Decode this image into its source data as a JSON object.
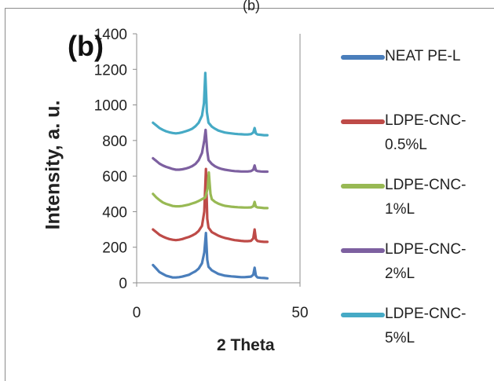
{
  "panel_label": "(b)",
  "top_label": "(b)",
  "chart_data": {
    "type": "line",
    "title": "",
    "xlabel": "2 Theta",
    "ylabel": "Intensity, a. u.",
    "xlim": [
      0,
      50
    ],
    "ylim": [
      0,
      1400
    ],
    "x_ticks": [
      "0",
      "50"
    ],
    "y_ticks": [
      "0",
      "200",
      "400",
      "600",
      "800",
      "1000",
      "1200",
      "1400"
    ],
    "grid": false,
    "legend_position": "right",
    "series": [
      {
        "name": "NEAT PE-L",
        "color": "#4a7ebb",
        "points": [
          [
            5,
            100
          ],
          [
            6,
            80
          ],
          [
            7,
            60
          ],
          [
            8,
            50
          ],
          [
            9,
            40
          ],
          [
            10,
            35
          ],
          [
            11,
            30
          ],
          [
            12,
            30
          ],
          [
            13,
            32
          ],
          [
            14,
            35
          ],
          [
            15,
            40
          ],
          [
            16,
            45
          ],
          [
            17,
            55
          ],
          [
            18,
            65
          ],
          [
            19,
            80
          ],
          [
            20,
            110
          ],
          [
            20.7,
            170
          ],
          [
            21.2,
            280
          ],
          [
            21.6,
            130
          ],
          [
            22,
            90
          ],
          [
            23,
            70
          ],
          [
            24,
            60
          ],
          [
            25,
            50
          ],
          [
            26,
            45
          ],
          [
            27,
            40
          ],
          [
            28,
            38
          ],
          [
            29,
            36
          ],
          [
            30,
            35
          ],
          [
            31,
            33
          ],
          [
            32,
            32
          ],
          [
            33,
            32
          ],
          [
            34,
            33
          ],
          [
            35,
            35
          ],
          [
            35.7,
            45
          ],
          [
            36.1,
            85
          ],
          [
            36.5,
            40
          ],
          [
            37,
            30
          ],
          [
            38,
            28
          ],
          [
            39,
            27
          ],
          [
            40,
            25
          ]
        ]
      },
      {
        "name": "LDPE-CNC-0.5%L",
        "color": "#be4b48",
        "points": [
          [
            5,
            300
          ],
          [
            6,
            285
          ],
          [
            7,
            270
          ],
          [
            8,
            260
          ],
          [
            9,
            252
          ],
          [
            10,
            246
          ],
          [
            11,
            242
          ],
          [
            12,
            240
          ],
          [
            13,
            242
          ],
          [
            14,
            246
          ],
          [
            15,
            252
          ],
          [
            16,
            258
          ],
          [
            17,
            266
          ],
          [
            18,
            276
          ],
          [
            19,
            292
          ],
          [
            20,
            320
          ],
          [
            20.7,
            400
          ],
          [
            21.2,
            640
          ],
          [
            21.6,
            360
          ],
          [
            22,
            310
          ],
          [
            23,
            285
          ],
          [
            24,
            275
          ],
          [
            25,
            265
          ],
          [
            26,
            258
          ],
          [
            27,
            252
          ],
          [
            28,
            248
          ],
          [
            29,
            244
          ],
          [
            30,
            240
          ],
          [
            31,
            238
          ],
          [
            32,
            236
          ],
          [
            33,
            234
          ],
          [
            34,
            234
          ],
          [
            35,
            236
          ],
          [
            35.7,
            250
          ],
          [
            36.1,
            300
          ],
          [
            36.5,
            245
          ],
          [
            37,
            235
          ],
          [
            38,
            232
          ],
          [
            39,
            230
          ],
          [
            40,
            230
          ]
        ]
      },
      {
        "name": "LDPE-CNC-1%L",
        "color": "#98b954",
        "points": [
          [
            5,
            500
          ],
          [
            6,
            480
          ],
          [
            7,
            465
          ],
          [
            8,
            452
          ],
          [
            9,
            444
          ],
          [
            10,
            438
          ],
          [
            11,
            432
          ],
          [
            12,
            430
          ],
          [
            13,
            430
          ],
          [
            14,
            432
          ],
          [
            15,
            436
          ],
          [
            16,
            440
          ],
          [
            17,
            446
          ],
          [
            18,
            452
          ],
          [
            19,
            460
          ],
          [
            20,
            470
          ],
          [
            21,
            480
          ],
          [
            21.7,
            530
          ],
          [
            22.1,
            620
          ],
          [
            22.6,
            500
          ],
          [
            23,
            470
          ],
          [
            24,
            455
          ],
          [
            25,
            445
          ],
          [
            26,
            438
          ],
          [
            27,
            433
          ],
          [
            28,
            430
          ],
          [
            29,
            428
          ],
          [
            30,
            426
          ],
          [
            31,
            425
          ],
          [
            32,
            424
          ],
          [
            33,
            423
          ],
          [
            34,
            423
          ],
          [
            35,
            424
          ],
          [
            35.7,
            430
          ],
          [
            36.1,
            455
          ],
          [
            36.5,
            428
          ],
          [
            37,
            424
          ],
          [
            38,
            422
          ],
          [
            39,
            420
          ],
          [
            40,
            420
          ]
        ]
      },
      {
        "name": "LDPE-CNC-2%L",
        "color": "#7d60a0",
        "points": [
          [
            5,
            700
          ],
          [
            6,
            685
          ],
          [
            7,
            670
          ],
          [
            8,
            660
          ],
          [
            9,
            652
          ],
          [
            10,
            646
          ],
          [
            11,
            640
          ],
          [
            12,
            636
          ],
          [
            13,
            636
          ],
          [
            14,
            638
          ],
          [
            15,
            642
          ],
          [
            16,
            648
          ],
          [
            17,
            656
          ],
          [
            18,
            668
          ],
          [
            19,
            690
          ],
          [
            20,
            730
          ],
          [
            20.7,
            800
          ],
          [
            21.1,
            860
          ],
          [
            21.6,
            740
          ],
          [
            22,
            690
          ],
          [
            23,
            668
          ],
          [
            24,
            655
          ],
          [
            25,
            646
          ],
          [
            26,
            640
          ],
          [
            27,
            636
          ],
          [
            28,
            633
          ],
          [
            29,
            630
          ],
          [
            30,
            628
          ],
          [
            31,
            627
          ],
          [
            32,
            626
          ],
          [
            33,
            626
          ],
          [
            34,
            626
          ],
          [
            35,
            628
          ],
          [
            35.7,
            636
          ],
          [
            36.1,
            660
          ],
          [
            36.5,
            632
          ],
          [
            37,
            628
          ],
          [
            38,
            626
          ],
          [
            39,
            625
          ],
          [
            40,
            625
          ]
        ]
      },
      {
        "name": "LDPE-CNC-5%L",
        "color": "#46aac5",
        "points": [
          [
            5,
            900
          ],
          [
            6,
            885
          ],
          [
            7,
            870
          ],
          [
            8,
            860
          ],
          [
            9,
            852
          ],
          [
            10,
            846
          ],
          [
            11,
            842
          ],
          [
            12,
            840
          ],
          [
            13,
            842
          ],
          [
            14,
            846
          ],
          [
            15,
            852
          ],
          [
            16,
            858
          ],
          [
            17,
            866
          ],
          [
            18,
            880
          ],
          [
            19,
            900
          ],
          [
            20,
            940
          ],
          [
            20.6,
            1010
          ],
          [
            21,
            1180
          ],
          [
            21.5,
            960
          ],
          [
            22,
            900
          ],
          [
            23,
            878
          ],
          [
            24,
            866
          ],
          [
            25,
            856
          ],
          [
            26,
            850
          ],
          [
            27,
            845
          ],
          [
            28,
            842
          ],
          [
            29,
            840
          ],
          [
            30,
            838
          ],
          [
            31,
            836
          ],
          [
            32,
            835
          ],
          [
            33,
            834
          ],
          [
            34,
            834
          ],
          [
            35,
            836
          ],
          [
            35.7,
            845
          ],
          [
            36.1,
            870
          ],
          [
            36.5,
            840
          ],
          [
            37,
            834
          ],
          [
            38,
            832
          ],
          [
            39,
            830
          ],
          [
            40,
            830
          ]
        ]
      }
    ]
  }
}
